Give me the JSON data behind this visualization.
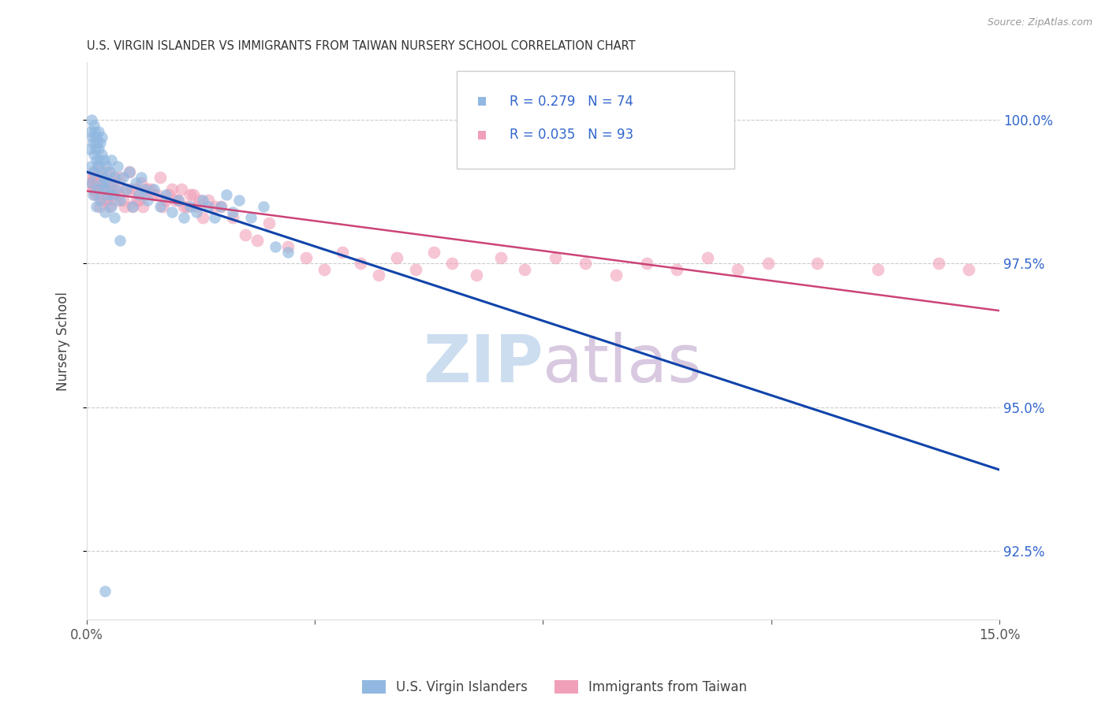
{
  "title": "U.S. VIRGIN ISLANDER VS IMMIGRANTS FROM TAIWAN NURSERY SCHOOL CORRELATION CHART",
  "source": "Source: ZipAtlas.com",
  "ylabel": "Nursery School",
  "ytick_values": [
    92.5,
    95.0,
    97.5,
    100.0
  ],
  "xlim": [
    0.0,
    15.0
  ],
  "ylim": [
    91.3,
    101.0
  ],
  "blue_color": "#90b8e0",
  "pink_color": "#f0a0b8",
  "blue_line_color": "#1144aa",
  "pink_line_color": "#cc4477",
  "legend_box_color": "#eeeeee",
  "watermark_zip_color": "#ccddf0",
  "watermark_atlas_color": "#d8c8e0",
  "blue_x": [
    0.05,
    0.07,
    0.08,
    0.09,
    0.1,
    0.11,
    0.12,
    0.13,
    0.14,
    0.15,
    0.16,
    0.17,
    0.18,
    0.19,
    0.2,
    0.21,
    0.22,
    0.23,
    0.24,
    0.25,
    0.27,
    0.28,
    0.3,
    0.32,
    0.35,
    0.38,
    0.4,
    0.42,
    0.45,
    0.48,
    0.5,
    0.55,
    0.6,
    0.65,
    0.7,
    0.75,
    0.8,
    0.85,
    0.9,
    0.95,
    1.0,
    1.1,
    1.2,
    1.3,
    1.4,
    1.5,
    1.6,
    1.7,
    1.8,
    1.9,
    2.0,
    2.1,
    2.2,
    2.3,
    2.4,
    2.5,
    2.7,
    2.9,
    3.1,
    3.3,
    0.06,
    0.08,
    0.1,
    0.12,
    0.15,
    0.18,
    0.22,
    0.26,
    0.3,
    0.35,
    0.4,
    0.45,
    0.55,
    0.3
  ],
  "blue_y": [
    99.5,
    99.8,
    100.0,
    99.7,
    99.6,
    99.9,
    99.4,
    99.8,
    99.5,
    99.3,
    99.7,
    99.6,
    99.2,
    99.5,
    99.8,
    99.3,
    99.6,
    99.1,
    99.4,
    99.7,
    99.0,
    99.3,
    98.8,
    99.2,
    98.9,
    99.1,
    99.3,
    98.7,
    99.0,
    98.8,
    99.2,
    98.6,
    99.0,
    98.8,
    99.1,
    98.5,
    98.9,
    98.7,
    99.0,
    98.8,
    98.6,
    98.8,
    98.5,
    98.7,
    98.4,
    98.6,
    98.3,
    98.5,
    98.4,
    98.6,
    98.5,
    98.3,
    98.5,
    98.7,
    98.4,
    98.6,
    98.3,
    98.5,
    97.8,
    97.7,
    99.2,
    98.9,
    98.7,
    99.1,
    98.5,
    98.8,
    98.6,
    98.9,
    98.4,
    98.7,
    98.5,
    98.3,
    97.9,
    91.8
  ],
  "pink_x": [
    0.05,
    0.08,
    0.1,
    0.12,
    0.15,
    0.18,
    0.2,
    0.22,
    0.25,
    0.28,
    0.3,
    0.32,
    0.35,
    0.38,
    0.4,
    0.42,
    0.45,
    0.48,
    0.5,
    0.55,
    0.6,
    0.65,
    0.7,
    0.75,
    0.8,
    0.85,
    0.9,
    0.95,
    1.0,
    1.1,
    1.2,
    1.3,
    1.4,
    1.5,
    1.6,
    1.7,
    1.8,
    1.9,
    2.0,
    2.2,
    2.4,
    2.6,
    2.8,
    3.0,
    3.3,
    3.6,
    3.9,
    4.2,
    4.5,
    4.8,
    5.1,
    5.4,
    5.7,
    6.0,
    6.4,
    6.8,
    7.2,
    7.7,
    8.2,
    8.7,
    9.2,
    9.7,
    10.2,
    10.7,
    11.2,
    12.0,
    13.0,
    14.0,
    14.5,
    0.06,
    0.09,
    0.11,
    0.14,
    0.17,
    0.21,
    0.27,
    0.33,
    0.42,
    0.52,
    0.62,
    0.72,
    0.82,
    0.92,
    1.05,
    1.15,
    1.25,
    1.35,
    1.45,
    1.55,
    1.65,
    1.75,
    1.85,
    2.1
  ],
  "pink_y": [
    98.9,
    99.0,
    98.8,
    99.1,
    98.9,
    98.7,
    99.2,
    98.8,
    99.0,
    98.6,
    98.9,
    98.7,
    99.1,
    98.5,
    98.9,
    98.7,
    99.0,
    98.6,
    98.8,
    99.0,
    98.6,
    98.8,
    99.1,
    98.5,
    98.8,
    98.6,
    98.9,
    98.7,
    98.8,
    98.7,
    99.0,
    98.6,
    98.8,
    98.6,
    98.5,
    98.7,
    98.5,
    98.3,
    98.6,
    98.5,
    98.3,
    98.0,
    97.9,
    98.2,
    97.8,
    97.6,
    97.4,
    97.7,
    97.5,
    97.3,
    97.6,
    97.4,
    97.7,
    97.5,
    97.3,
    97.6,
    97.4,
    97.6,
    97.5,
    97.3,
    97.5,
    97.4,
    97.6,
    97.4,
    97.5,
    97.5,
    97.4,
    97.5,
    97.4,
    98.9,
    99.0,
    98.8,
    98.7,
    98.9,
    98.5,
    98.8,
    98.6,
    98.8,
    98.7,
    98.5,
    98.8,
    98.6,
    98.5,
    98.8,
    98.7,
    98.5,
    98.7,
    98.6,
    98.8,
    98.5,
    98.7,
    98.6,
    98.5
  ]
}
